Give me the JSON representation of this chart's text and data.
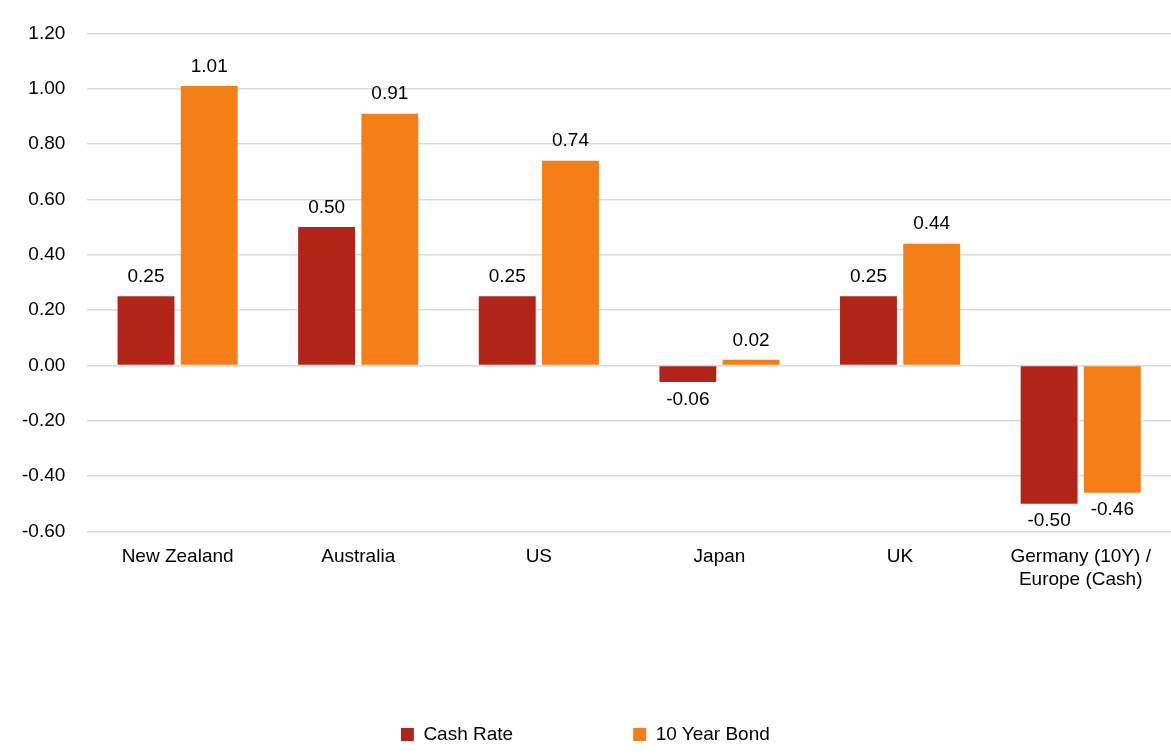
{
  "chart_data": {
    "type": "bar",
    "categories": [
      "New Zealand",
      "Australia",
      "US",
      "Japan",
      "UK",
      "Germany (10Y) / Europe (Cash)"
    ],
    "series": [
      {
        "name": "Cash Rate",
        "color": "#b22418",
        "values": [
          0.25,
          0.5,
          0.25,
          -0.06,
          0.25,
          -0.5
        ],
        "value_labels": [
          "0.25",
          "0.50",
          "0.25",
          "-0.06",
          "0.25",
          "-0.50"
        ]
      },
      {
        "name": "10 Year Bond",
        "color": "#f57f17",
        "values": [
          1.01,
          0.91,
          0.74,
          0.02,
          0.44,
          -0.46
        ],
        "value_labels": [
          "1.01",
          "0.91",
          "0.74",
          "0.02",
          "0.44",
          "-0.46"
        ]
      }
    ],
    "ylim": [
      -0.6,
      1.2
    ],
    "yticks": [
      {
        "value": -0.6,
        "label": "-0.60"
      },
      {
        "value": -0.4,
        "label": "-0.40"
      },
      {
        "value": -0.2,
        "label": "-0.20"
      },
      {
        "value": 0,
        "label": "0.00"
      },
      {
        "value": 0.2,
        "label": "0.20"
      },
      {
        "value": 0.4,
        "label": "0.40"
      },
      {
        "value": 0.6,
        "label": "0.60"
      },
      {
        "value": 0.8,
        "label": "0.80"
      },
      {
        "value": 1,
        "label": "1.00"
      },
      {
        "value": 1.2,
        "label": "1.20"
      }
    ],
    "grid": "y",
    "legend": "bottom"
  }
}
